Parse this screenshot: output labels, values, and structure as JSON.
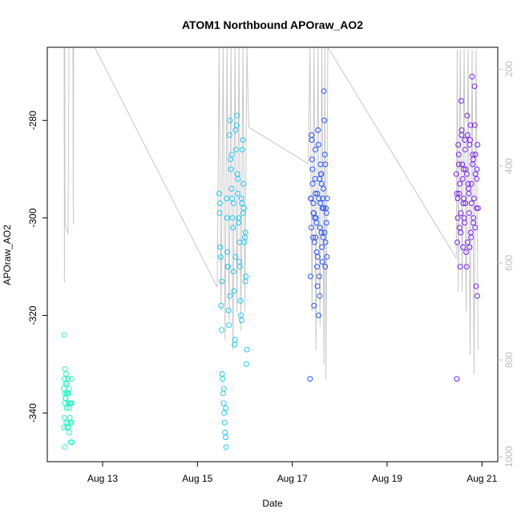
{
  "chart_data": {
    "type": "scatter",
    "title": "ATOM1 Northbound APOraw_AO2",
    "xlabel": "Date",
    "ylabel": "APOraw_AO2",
    "xlim": [
      "2020-08-11T20:00",
      "2020-08-21T08:00"
    ],
    "ylim": [
      -350,
      -265
    ],
    "y_ticks": [
      -340,
      -320,
      -300,
      -280
    ],
    "x_ticks": [
      {
        "date": "2020-08-13",
        "label": "Aug 13"
      },
      {
        "date": "2020-08-15",
        "label": "Aug 15"
      },
      {
        "date": "2020-08-17",
        "label": "Aug 17"
      },
      {
        "date": "2020-08-19",
        "label": "Aug 19"
      },
      {
        "date": "2020-08-21",
        "label": "Aug 21"
      }
    ],
    "secondary_axis": {
      "side": "right",
      "color": "#bdbdbd",
      "reversed": true,
      "ylim": [
        1010,
        155
      ],
      "ticks": [
        200,
        400,
        600,
        800,
        1000
      ],
      "trace_color": "#c8c8c8",
      "trace": [
        [
          "2020-08-12T04:30",
          155
        ],
        [
          "2020-08-12T04:40",
          640
        ],
        [
          "2020-08-12T04:50",
          155
        ],
        [
          "2020-08-12T05:00",
          520
        ],
        [
          "2020-08-12T06:30",
          540
        ],
        [
          "2020-08-12T07:00",
          155
        ],
        [
          "2020-08-12T09:00",
          155
        ],
        [
          "2020-08-12T09:10",
          520
        ],
        [
          "2020-08-12T09:20",
          155
        ],
        [
          "2020-08-12T20:00",
          155
        ],
        [
          "2020-08-15T10:00",
          650
        ],
        [
          "2020-08-15T11:00",
          155
        ],
        [
          "2020-08-15T12:00",
          700
        ],
        [
          "2020-08-15T13:00",
          155
        ],
        [
          "2020-08-15T14:00",
          760
        ],
        [
          "2020-08-15T15:00",
          155
        ],
        [
          "2020-08-15T16:00",
          720
        ],
        [
          "2020-08-15T17:00",
          155
        ],
        [
          "2020-08-15T18:00",
          780
        ],
        [
          "2020-08-15T19:00",
          155
        ],
        [
          "2020-08-15T20:00",
          700
        ],
        [
          "2020-08-15T21:00",
          155
        ],
        [
          "2020-08-15T22:00",
          740
        ],
        [
          "2020-08-15T23:00",
          155
        ],
        [
          "2020-08-16T00:00",
          700
        ],
        [
          "2020-08-16T01:00",
          155
        ],
        [
          "2020-08-16T02:00",
          320
        ],
        [
          "2020-08-17T08:00",
          395
        ],
        [
          "2020-08-17T09:00",
          155
        ],
        [
          "2020-08-17T10:00",
          700
        ],
        [
          "2020-08-17T11:00",
          155
        ],
        [
          "2020-08-17T12:00",
          780
        ],
        [
          "2020-08-17T13:00",
          155
        ],
        [
          "2020-08-17T14:00",
          730
        ],
        [
          "2020-08-17T15:00",
          155
        ],
        [
          "2020-08-17T16:00",
          810
        ],
        [
          "2020-08-17T16:30",
          155
        ],
        [
          "2020-08-17T17:00",
          840
        ],
        [
          "2020-08-17T18:00",
          155
        ],
        [
          "2020-08-20T11:00",
          590
        ],
        [
          "2020-08-20T11:30",
          160
        ],
        [
          "2020-08-20T12:00",
          660
        ],
        [
          "2020-08-20T13:00",
          160
        ],
        [
          "2020-08-20T14:00",
          660
        ],
        [
          "2020-08-20T15:00",
          160
        ],
        [
          "2020-08-20T16:00",
          700
        ],
        [
          "2020-08-20T17:00",
          160
        ],
        [
          "2020-08-20T18:00",
          790
        ],
        [
          "2020-08-20T19:00",
          160
        ],
        [
          "2020-08-20T20:00",
          830
        ],
        [
          "2020-08-20T21:00",
          160
        ],
        [
          "2020-08-20T22:00",
          780
        ]
      ]
    },
    "series": [
      {
        "color": "#2cf0c8",
        "x": [
          "2020-08-12T04:30",
          "2020-08-12T05:00",
          "2020-08-12T05:30",
          "2020-08-12T04:45",
          "2020-08-12T05:15",
          "2020-08-12T06:00",
          "2020-08-12T04:20",
          "2020-08-12T05:45",
          "2020-08-12T06:30",
          "2020-08-12T07:00",
          "2020-08-12T04:50",
          "2020-08-12T05:20",
          "2020-08-12T06:15",
          "2020-08-12T07:30",
          "2020-08-12T08:00",
          "2020-08-12T04:40",
          "2020-08-12T05:50",
          "2020-08-12T06:40",
          "2020-08-12T07:15",
          "2020-08-12T08:20",
          "2020-08-12T04:35",
          "2020-08-12T05:35",
          "2020-08-12T06:50",
          "2020-08-12T07:45",
          "2020-08-12T08:10",
          "2020-08-12T04:25",
          "2020-08-12T06:05",
          "2020-08-12T07:05",
          "2020-08-12T07:50",
          "2020-08-12T08:30",
          "2020-08-12T04:55",
          "2020-08-12T06:25",
          "2020-08-12T07:25",
          "2020-08-12T08:15",
          "2020-08-12T05:10",
          "2020-08-12T06:45"
        ],
        "y": [
          -324,
          -331,
          -332,
          -333,
          -334,
          -334,
          -335,
          -336,
          -333,
          -335,
          -336,
          -337,
          -336,
          -338,
          -338,
          -338,
          -339,
          -338,
          -339,
          -338,
          -341,
          -342,
          -343,
          -342,
          -342,
          -343,
          -343,
          -344,
          -346,
          -346,
          -347,
          -342,
          -341,
          -333,
          -337,
          -336
        ]
      },
      {
        "color": "#22c7f2",
        "x": [
          "2020-08-15T11:00",
          "2020-08-15T11:30",
          "2020-08-15T12:00",
          "2020-08-15T12:30",
          "2020-08-15T13:00",
          "2020-08-15T13:30",
          "2020-08-15T14:00",
          "2020-08-15T14:30",
          "2020-08-15T15:00",
          "2020-08-15T15:30",
          "2020-08-15T16:00",
          "2020-08-15T16:30",
          "2020-08-15T17:00",
          "2020-08-15T17:30",
          "2020-08-15T18:00",
          "2020-08-15T18:30",
          "2020-08-15T19:00",
          "2020-08-15T19:30",
          "2020-08-15T20:00",
          "2020-08-15T20:30",
          "2020-08-15T21:00",
          "2020-08-15T21:30",
          "2020-08-15T22:00",
          "2020-08-15T22:30",
          "2020-08-15T23:00",
          "2020-08-15T23:30",
          "2020-08-16T00:00",
          "2020-08-16T00:30",
          "2020-08-16T01:00",
          "2020-08-15T11:15",
          "2020-08-15T11:45",
          "2020-08-15T12:15",
          "2020-08-15T12:45",
          "2020-08-15T13:15",
          "2020-08-15T13:45",
          "2020-08-15T14:15",
          "2020-08-15T14:45",
          "2020-08-15T15:15",
          "2020-08-15T15:45",
          "2020-08-15T16:15",
          "2020-08-15T16:45",
          "2020-08-15T17:15",
          "2020-08-15T17:45",
          "2020-08-15T18:15",
          "2020-08-15T18:45",
          "2020-08-15T19:15",
          "2020-08-15T19:45",
          "2020-08-15T20:15",
          "2020-08-15T20:45",
          "2020-08-15T21:15",
          "2020-08-15T21:45",
          "2020-08-15T22:15",
          "2020-08-15T22:45",
          "2020-08-15T23:15",
          "2020-08-15T23:45",
          "2020-08-16T00:15",
          "2020-08-16T00:45",
          "2020-08-15T11:20",
          "2020-08-15T12:20",
          "2020-08-15T13:20",
          "2020-08-15T14:20",
          "2020-08-15T15:20",
          "2020-08-15T16:20",
          "2020-08-15T17:20",
          "2020-08-15T18:20",
          "2020-08-15T19:20",
          "2020-08-15T20:20",
          "2020-08-15T21:20",
          "2020-08-15T22:20",
          "2020-08-15T23:20",
          "2020-08-16T00:20"
        ],
        "y": [
          -295,
          -306,
          -318,
          -332,
          -336,
          -340,
          -344,
          -347,
          -300,
          -310,
          -322,
          -280,
          -290,
          -296,
          -302,
          -315,
          -325,
          -286,
          -279,
          -292,
          -300,
          -310,
          -320,
          -297,
          -284,
          -298,
          -304,
          -312,
          -327,
          -299,
          -308,
          -323,
          -333,
          -338,
          -342,
          -345,
          -296,
          -307,
          -319,
          -283,
          -288,
          -294,
          -300,
          -311,
          -326,
          -282,
          -281,
          -291,
          -301,
          -309,
          -317,
          -296,
          -286,
          -299,
          -305,
          -313,
          -330,
          -297,
          -313,
          -335,
          -339,
          -310,
          -316,
          -287,
          -297,
          -308,
          -295,
          -305,
          -321,
          -293,
          -303
        ]
      },
      {
        "color": "#2b55f0",
        "x": [
          "2020-08-17T09:00",
          "2020-08-17T09:30",
          "2020-08-17T10:00",
          "2020-08-17T10:30",
          "2020-08-17T11:00",
          "2020-08-17T11:30",
          "2020-08-17T12:00",
          "2020-08-17T12:30",
          "2020-08-17T13:00",
          "2020-08-17T13:30",
          "2020-08-17T14:00",
          "2020-08-17T14:30",
          "2020-08-17T15:00",
          "2020-08-17T15:30",
          "2020-08-17T16:00",
          "2020-08-17T16:30",
          "2020-08-17T17:00",
          "2020-08-17T17:30",
          "2020-08-17T09:15",
          "2020-08-17T09:45",
          "2020-08-17T10:15",
          "2020-08-17T10:45",
          "2020-08-17T11:15",
          "2020-08-17T11:45",
          "2020-08-17T12:15",
          "2020-08-17T12:45",
          "2020-08-17T13:15",
          "2020-08-17T13:45",
          "2020-08-17T14:15",
          "2020-08-17T14:45",
          "2020-08-17T15:15",
          "2020-08-17T15:45",
          "2020-08-17T16:15",
          "2020-08-17T16:45",
          "2020-08-17T17:15",
          "2020-08-17T09:20",
          "2020-08-17T10:20",
          "2020-08-17T11:20",
          "2020-08-17T12:20",
          "2020-08-17T13:20",
          "2020-08-17T14:20",
          "2020-08-17T15:20",
          "2020-08-17T16:20",
          "2020-08-17T17:20",
          "2020-08-17T09:40",
          "2020-08-17T10:40",
          "2020-08-17T11:40",
          "2020-08-17T12:40",
          "2020-08-17T13:40",
          "2020-08-17T14:40",
          "2020-08-17T15:40",
          "2020-08-17T16:40",
          "2020-08-17T17:40",
          "2020-08-17T09:50",
          "2020-08-17T10:50",
          "2020-08-17T11:50",
          "2020-08-17T12:50",
          "2020-08-17T13:50",
          "2020-08-17T14:50",
          "2020-08-17T15:50",
          "2020-08-17T16:50"
        ],
        "y": [
          -333,
          -296,
          -288,
          -304,
          -318,
          -292,
          -300,
          -310,
          -282,
          -296,
          -302,
          -291,
          -306,
          -296,
          -274,
          -287,
          -298,
          -308,
          -312,
          -283,
          -290,
          -299,
          -305,
          -295,
          -301,
          -314,
          -285,
          -292,
          -297,
          -303,
          -309,
          -294,
          -280,
          -289,
          -301,
          -296,
          -293,
          -300,
          -307,
          -320,
          -289,
          -298,
          -303,
          -299,
          -302,
          -297,
          -286,
          -295,
          -312,
          -291,
          -304,
          -310,
          -296,
          -284,
          -299,
          -304,
          -308,
          -316,
          -293,
          -298,
          -305
        ]
      },
      {
        "color": "#7a24e6",
        "x": [
          "2020-08-20T11:00",
          "2020-08-20T11:30",
          "2020-08-20T12:00",
          "2020-08-20T12:30",
          "2020-08-20T13:00",
          "2020-08-20T13:30",
          "2020-08-20T14:00",
          "2020-08-20T14:30",
          "2020-08-20T15:00",
          "2020-08-20T15:30",
          "2020-08-20T16:00",
          "2020-08-20T16:30",
          "2020-08-20T17:00",
          "2020-08-20T17:30",
          "2020-08-20T18:00",
          "2020-08-20T18:30",
          "2020-08-20T19:00",
          "2020-08-20T19:30",
          "2020-08-20T20:00",
          "2020-08-20T20:30",
          "2020-08-20T21:00",
          "2020-08-20T21:30",
          "2020-08-20T22:00",
          "2020-08-20T11:15",
          "2020-08-20T11:45",
          "2020-08-20T12:15",
          "2020-08-20T12:45",
          "2020-08-20T13:15",
          "2020-08-20T13:45",
          "2020-08-20T14:15",
          "2020-08-20T14:45",
          "2020-08-20T15:15",
          "2020-08-20T15:45",
          "2020-08-20T16:15",
          "2020-08-20T16:45",
          "2020-08-20T17:15",
          "2020-08-20T17:45",
          "2020-08-20T18:15",
          "2020-08-20T18:45",
          "2020-08-20T19:15",
          "2020-08-20T19:45",
          "2020-08-20T20:15",
          "2020-08-20T20:45",
          "2020-08-20T21:15",
          "2020-08-20T21:45",
          "2020-08-20T11:20",
          "2020-08-20T12:20",
          "2020-08-20T13:20",
          "2020-08-20T14:20",
          "2020-08-20T15:20",
          "2020-08-20T16:20",
          "2020-08-20T17:20",
          "2020-08-20T18:20",
          "2020-08-20T19:20",
          "2020-08-20T20:20",
          "2020-08-20T21:20",
          "2020-08-20T11:40",
          "2020-08-20T12:40",
          "2020-08-20T13:40",
          "2020-08-20T14:40",
          "2020-08-20T15:40",
          "2020-08-20T16:40",
          "2020-08-20T17:40",
          "2020-08-20T18:40",
          "2020-08-20T19:40",
          "2020-08-20T20:40",
          "2020-08-20T21:40"
        ],
        "y": [
          -291,
          -305,
          -285,
          -295,
          -310,
          -276,
          -289,
          -297,
          -300,
          -286,
          -307,
          -279,
          -293,
          -299,
          -284,
          -304,
          -271,
          -288,
          -296,
          -302,
          -314,
          -290,
          -298,
          -333,
          -300,
          -287,
          -293,
          -303,
          -282,
          -292,
          -296,
          -301,
          -290,
          -310,
          -283,
          -294,
          -306,
          -281,
          -297,
          -289,
          -300,
          -273,
          -291,
          -298,
          -285,
          -295,
          -289,
          -299,
          -306,
          -284,
          -291,
          -295,
          -303,
          -287,
          -281,
          -292,
          -296,
          -302,
          -283,
          -290,
          -297,
          -305,
          -285,
          -293,
          -301,
          -287,
          -316
        ]
      }
    ]
  }
}
